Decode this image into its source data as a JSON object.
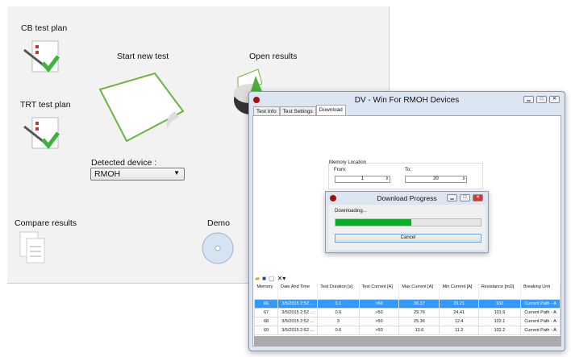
{
  "main": {
    "cb_test_plan": "CB test plan",
    "trt_test_plan": "TRT test plan",
    "start_new_test": "Start new test",
    "open_results": "Open results",
    "detected_device_label": "Detected device :",
    "detected_device_value": "RMOH",
    "compare_results": "Compare results",
    "demo": "Demo"
  },
  "window": {
    "title": "DV - Win For RMOH Devices",
    "tabs": [
      "Test Info",
      "Test Settings",
      "Download"
    ],
    "active_tab": "Download",
    "memory_location": "Memory Location",
    "from_label": "From:",
    "from_value": "1",
    "to_label": "To:",
    "to_value": "30",
    "columns": [
      "Memory",
      "Date And Time",
      "Test Duration [s]",
      "Test Current [A]",
      "Max Current [A]",
      "Min Current [A]",
      "Resistance [mΩ]",
      "Breaking Unit"
    ],
    "rows": [
      [
        "66",
        "3/5/2015 2:52 ...",
        "0.1",
        ">50",
        "30.37",
        "29.21",
        "102",
        "Current Path - A"
      ],
      [
        "67",
        "3/5/2015 2:52 ...",
        "0.6",
        ">50",
        "29.76",
        "24.41",
        "101.9",
        "Current Path - A"
      ],
      [
        "68",
        "3/5/2015 2:52 ...",
        "3",
        ">50",
        "25.36",
        "12.4",
        "102.1",
        "Current Path - A"
      ],
      [
        "69",
        "3/5/2015 2:52 ...",
        "0.6",
        ">50",
        "13.6",
        "11.2",
        "102.2",
        "Current Path - A"
      ]
    ],
    "selected_row": 0
  },
  "progress": {
    "title": "Download Progress",
    "status": "Downloading...",
    "percent": 52,
    "cancel": "Cancel"
  },
  "colors": {
    "progress": "#06b025",
    "selection": "#3399ff",
    "accent_green": "#6cb33f"
  }
}
